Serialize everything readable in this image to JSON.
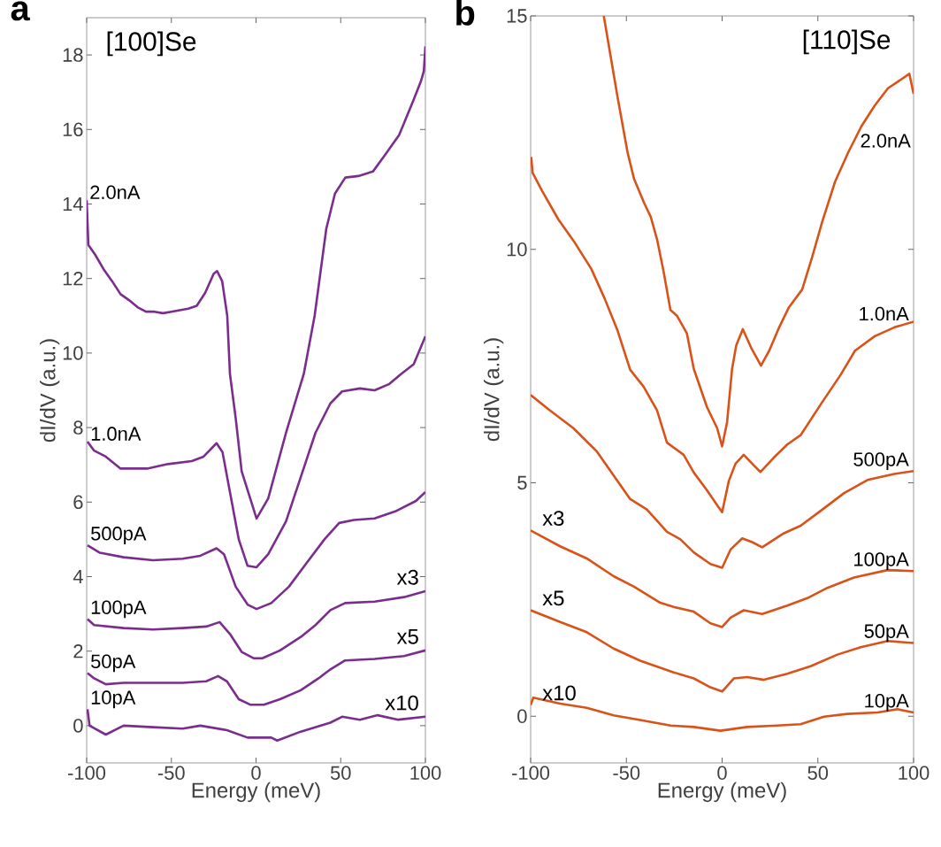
{
  "chart_data": [
    {
      "type": "line",
      "title": "a",
      "xlabel": "Energy (meV)",
      "ylabel": "dI/dV (a.u.)",
      "xlim": [
        -100,
        100
      ],
      "ylim": [
        -1,
        19
      ],
      "xticks": [
        -100,
        -50,
        0,
        50,
        100
      ],
      "yticks": [
        0,
        2,
        4,
        6,
        8,
        10,
        12,
        14,
        16,
        18
      ],
      "annotations": [
        "[100]Se",
        "x3",
        "x5",
        "x10"
      ],
      "series": [
        {
          "name": "2.0nA",
          "color": "#7b2d8e",
          "x": [
            -100,
            -99,
            -95,
            -90,
            -85,
            -80,
            -75,
            -70,
            -65,
            -60,
            -55,
            -50,
            -45,
            -40,
            -35,
            -30,
            -25,
            -23,
            -20,
            -17,
            -15.4,
            -12,
            -8.5,
            0.3,
            7.2,
            17.7,
            28.2,
            34.6,
            41.5,
            46.6,
            52.7,
            60.4,
            69,
            75.9,
            84.5,
            93.1,
            97.4,
            99.1,
            100
          ],
          "values": [
            14.1,
            12.9,
            12.64,
            12.25,
            11.93,
            11.58,
            11.42,
            11.23,
            11.11,
            11.11,
            11.07,
            11.11,
            11.15,
            11.19,
            11.27,
            11.62,
            12.13,
            12.2,
            11.93,
            11.0,
            9.44,
            8.25,
            6.83,
            5.56,
            6.1,
            7.86,
            9.44,
            11.0,
            13.34,
            14.28,
            14.71,
            14.75,
            14.87,
            15.3,
            15.85,
            16.8,
            17.3,
            17.57,
            18.23
          ]
        },
        {
          "name": "1.0nA",
          "color": "#7b2d8e",
          "x": [
            -99.5,
            -95.6,
            -88.7,
            -80,
            -64.3,
            -52,
            -38,
            -31,
            -23.3,
            -19.8,
            -15.4,
            -10.2,
            -5,
            0.3,
            7.2,
            17.7,
            26.4,
            35.1,
            43.9,
            50.8,
            61.3,
            70,
            78.7,
            85.7,
            93.1,
            100
          ],
          "values": [
            7.62,
            7.38,
            7.22,
            6.9,
            6.9,
            7.02,
            7.1,
            7.22,
            7.58,
            7.34,
            6.27,
            5.0,
            4.29,
            4.25,
            4.6,
            5.48,
            6.67,
            7.86,
            8.65,
            8.97,
            9.05,
            9.0,
            9.17,
            9.44,
            9.7,
            10.45
          ]
        },
        {
          "name": "500pA",
          "color": "#7b2d8e",
          "x": [
            -99.5,
            -92.2,
            -78.2,
            -60.8,
            -43.3,
            -32.9,
            -23.3,
            -18.9,
            -12,
            -5,
            0.3,
            9,
            19.4,
            29.9,
            40.4,
            49.1,
            57.8,
            70,
            82.2,
            94.4,
            100
          ],
          "values": [
            4.84,
            4.64,
            4.52,
            4.44,
            4.48,
            4.56,
            4.76,
            4.6,
            3.73,
            3.25,
            3.13,
            3.29,
            3.73,
            4.37,
            5.0,
            5.44,
            5.52,
            5.56,
            5.75,
            6.03,
            6.27
          ]
        },
        {
          "name": "100pA",
          "color": "#7b2d8e",
          "x": [
            -99.5,
            -95.6,
            -78.2,
            -60.8,
            -43.3,
            -29.4,
            -21.5,
            -15.4,
            -8.5,
            -1.5,
            3.7,
            14.2,
            26.4,
            35.1,
            43.9,
            52.6,
            70,
            87.4,
            100
          ],
          "values": [
            2.86,
            2.7,
            2.62,
            2.58,
            2.62,
            2.66,
            2.78,
            2.46,
            1.98,
            1.81,
            1.81,
            2.02,
            2.38,
            2.7,
            3.1,
            3.29,
            3.33,
            3.45,
            3.61
          ]
        },
        {
          "name": "50pA",
          "color": "#7b2d8e",
          "x": [
            -99.5,
            -95.6,
            -88.7,
            -78.2,
            -60.8,
            -43.3,
            -29.4,
            -22.4,
            -17.2,
            -10.2,
            -3.2,
            4.6,
            14.2,
            26.4,
            36.9,
            43.9,
            52.6,
            70,
            87.4,
            100
          ],
          "values": [
            1.41,
            1.27,
            1.11,
            1.15,
            1.15,
            1.15,
            1.19,
            1.33,
            1.19,
            0.71,
            0.56,
            0.56,
            0.71,
            0.95,
            1.27,
            1.51,
            1.75,
            1.79,
            1.87,
            2.02
          ]
        },
        {
          "name": "10pA",
          "color": "#7b2d8e",
          "x": [
            -99.5,
            -98.3,
            -88.7,
            -78.2,
            -60.8,
            -43.3,
            -32.9,
            -17.2,
            -5,
            9,
            12.5,
            26.4,
            43.9,
            50.8,
            61.3,
            71.8,
            84,
            100
          ],
          "values": [
            0.44,
            0.0,
            -0.24,
            0.0,
            -0.04,
            -0.08,
            0.0,
            -0.12,
            -0.32,
            -0.32,
            -0.4,
            -0.16,
            0.08,
            0.24,
            0.16,
            0.28,
            0.16,
            0.24
          ]
        }
      ]
    },
    {
      "type": "line",
      "title": "b",
      "xlabel": "Energy (meV)",
      "ylabel": "dI/dV (a.u.)",
      "xlim": [
        -100,
        100
      ],
      "ylim": [
        -1,
        15
      ],
      "xticks": [
        -100,
        -50,
        0,
        50,
        100
      ],
      "yticks": [
        0,
        5,
        10,
        15
      ],
      "annotations": [
        "[110]Se",
        "x3",
        "x5",
        "x10"
      ],
      "series": [
        {
          "name": "2.0nA",
          "color": "#d95319",
          "x": [
            -61.8,
            -58,
            -54.6,
            -49.4,
            -46,
            -40.8,
            -37.3,
            -33.9,
            -30.5,
            -27,
            -23.6,
            -18.4,
            -14.8,
            -7.9,
            -2.6,
            0,
            2.6,
            5.2,
            7.4,
            10.8,
            15.2,
            20.3,
            24.6,
            29.8,
            34.9,
            41.8,
            47,
            52.2,
            59,
            65.9,
            72.8,
            79.7,
            86.6,
            93.5,
            97.8,
            100
          ],
          "values": [
            15,
            14.08,
            13.26,
            12.08,
            11.51,
            11.0,
            10.7,
            10.2,
            9.51,
            8.7,
            8.58,
            8.2,
            7.44,
            6.62,
            6.17,
            5.78,
            6.3,
            7.44,
            7.95,
            8.29,
            7.89,
            7.51,
            7.83,
            8.33,
            8.76,
            9.14,
            9.83,
            10.58,
            11.45,
            12.08,
            12.64,
            13.08,
            13.45,
            13.64,
            13.76,
            13.33
          ]
        },
        {
          "name": "1.0nA",
          "color": "#d95319",
          "x": [
            -99.7,
            -99,
            -94.1,
            -85.5,
            -76.9,
            -68.3,
            -61.4,
            -54.6,
            -48,
            -41,
            -34,
            -28.8,
            -20.1,
            -14.8,
            -7.9,
            -2.6,
            0,
            3.5,
            7,
            11.3,
            15.7,
            20,
            27,
            34,
            41,
            51.5,
            62,
            69.4,
            79.7,
            90,
            100
          ],
          "values": [
            11.98,
            11.64,
            11.26,
            10.64,
            10.14,
            9.58,
            8.95,
            8.26,
            7.42,
            7.06,
            6.55,
            5.86,
            5.6,
            5.22,
            4.84,
            4.52,
            4.37,
            5.04,
            5.41,
            5.6,
            5.41,
            5.23,
            5.54,
            5.82,
            6.02,
            6.68,
            7.32,
            7.83,
            8.14,
            8.33,
            8.45
          ]
        },
        {
          "name": "500pA",
          "color": "#d95319",
          "x": [
            -100,
            -89.9,
            -77.7,
            -65.4,
            -56.7,
            -48,
            -39.3,
            -28.8,
            -21.8,
            -14.8,
            -6.1,
            0,
            4.4,
            10.5,
            15.7,
            20.9,
            32.3,
            41,
            51.5,
            63.7,
            75.9,
            89.9,
            100
          ],
          "values": [
            6.88,
            6.55,
            6.17,
            5.67,
            5.16,
            4.65,
            4.43,
            3.95,
            3.79,
            3.51,
            3.26,
            3.18,
            3.57,
            3.81,
            3.73,
            3.62,
            3.92,
            4.08,
            4.4,
            4.78,
            5.06,
            5.19,
            5.25
          ]
        },
        {
          "name": "100pA",
          "color": "#d95319",
          "x": [
            -100,
            -84.6,
            -70.7,
            -56.7,
            -46.2,
            -32.3,
            -25.3,
            -14.8,
            -6.1,
            0,
            4.4,
            11.3,
            20.9,
            34,
            44.5,
            55,
            68.9,
            86.4,
            100
          ],
          "values": [
            3.98,
            3.64,
            3.38,
            3.0,
            2.78,
            2.43,
            2.34,
            2.24,
            1.99,
            1.91,
            2.11,
            2.27,
            2.19,
            2.37,
            2.53,
            2.75,
            2.97,
            3.13,
            3.11
          ]
        },
        {
          "name": "50pA",
          "color": "#d95319",
          "x": [
            -100,
            -84.6,
            -70.7,
            -56.7,
            -42.8,
            -25.3,
            -14.8,
            -6.1,
            0,
            6.1,
            13.1,
            21.8,
            34,
            46.2,
            60.2,
            72.4,
            86.4,
            100
          ],
          "values": [
            2.27,
            2.02,
            1.8,
            1.45,
            1.19,
            0.94,
            0.81,
            0.62,
            0.53,
            0.81,
            0.84,
            0.78,
            0.91,
            1.07,
            1.32,
            1.48,
            1.61,
            1.57
          ]
        },
        {
          "name": "10pA",
          "color": "#d95319",
          "x": [
            -100,
            -98.6,
            -84.6,
            -70.7,
            -56.7,
            -42.8,
            -27,
            -14.8,
            -0.9,
            13.1,
            28.8,
            41,
            53.2,
            65.4,
            81.2,
            91.6,
            100
          ],
          "values": [
            0.24,
            0.4,
            0.27,
            0.18,
            0.02,
            -0.08,
            -0.2,
            -0.23,
            -0.31,
            -0.23,
            -0.2,
            -0.17,
            -0.01,
            0.05,
            0.08,
            0.15,
            0.08
          ]
        }
      ]
    }
  ]
}
